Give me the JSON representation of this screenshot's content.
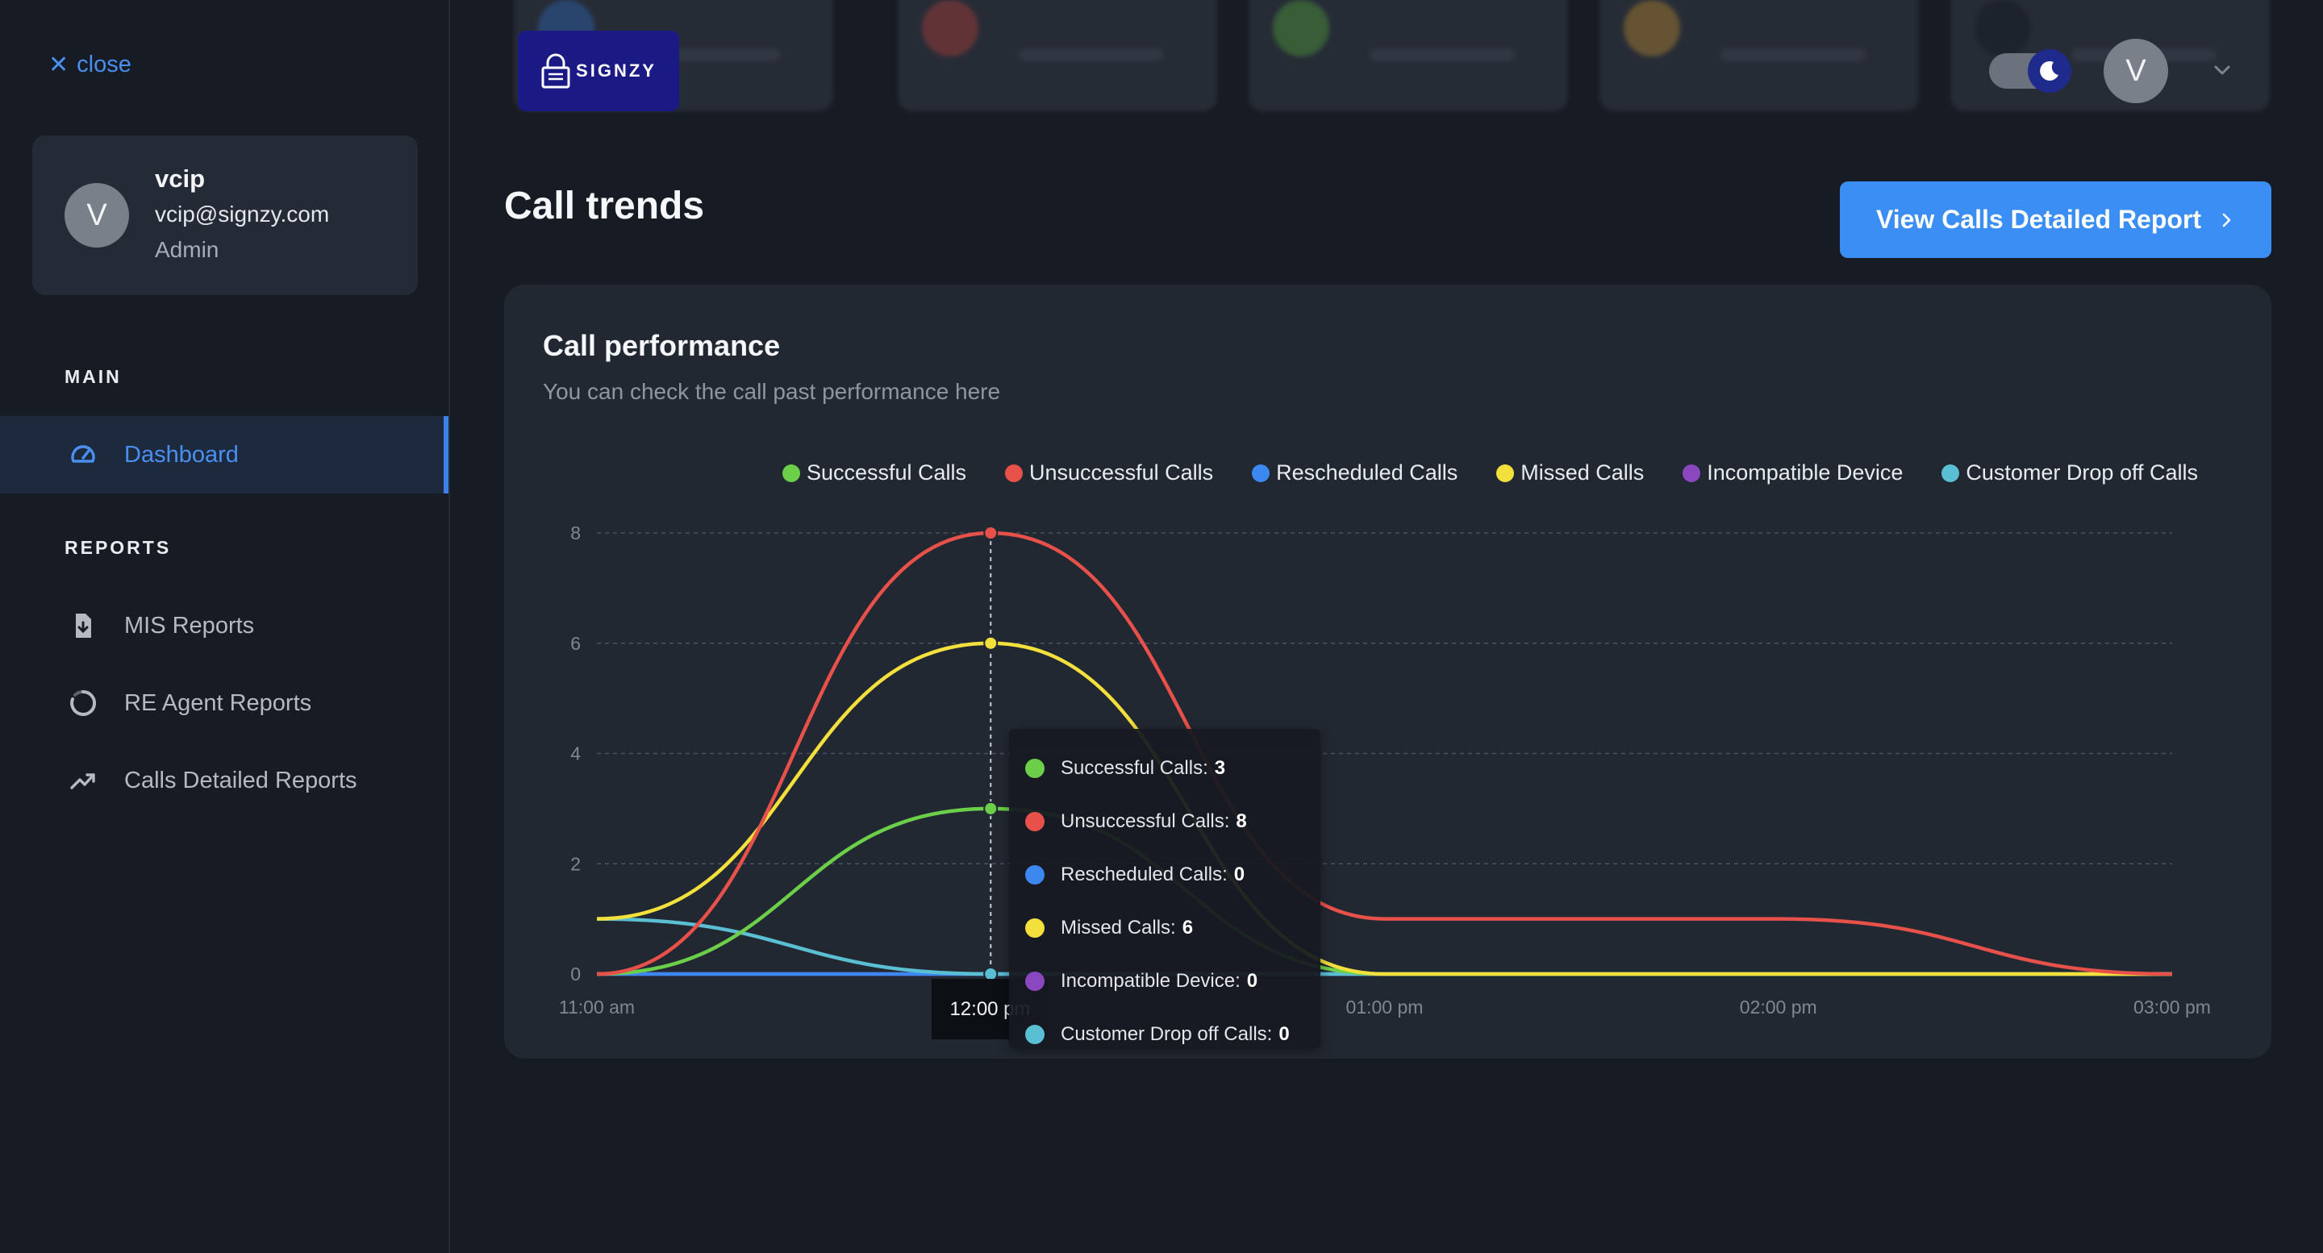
{
  "sidebar": {
    "close_label": "close",
    "profile": {
      "initial": "V",
      "name": "vcip",
      "email": "vcip@signzy.com",
      "role": "Admin"
    },
    "main_section": "MAIN",
    "main_items": [
      {
        "label": "Dashboard",
        "icon": "gauge-icon",
        "active": true
      }
    ],
    "reports_section": "REPORTS",
    "report_items": [
      {
        "label": "MIS Reports",
        "icon": "file-download-icon"
      },
      {
        "label": "RE Agent Reports",
        "icon": "circular-progress-icon"
      },
      {
        "label": "Calls Detailed Reports",
        "icon": "trending-up-icon"
      }
    ]
  },
  "header": {
    "logo_text": "SIGNZY",
    "user_initial": "V",
    "theme": "dark"
  },
  "main": {
    "title": "Call trends",
    "report_button": "View Calls Detailed Report",
    "card": {
      "title": "Call performance",
      "subtitle": "You can check the call past performance here"
    }
  },
  "tooltip": {
    "x_label": "12:00 pm",
    "rows": [
      {
        "label": "Successful Calls:",
        "value": "3"
      },
      {
        "label": "Unsuccessful Calls:",
        "value": "8"
      },
      {
        "label": "Rescheduled Calls:",
        "value": "0"
      },
      {
        "label": "Missed Calls:",
        "value": "6"
      },
      {
        "label": "Incompatible Device:",
        "value": "0"
      },
      {
        "label": "Customer Drop off Calls:",
        "value": "0"
      }
    ]
  },
  "chart_data": {
    "type": "line",
    "title": "",
    "xlabel": "",
    "ylabel": "",
    "x": [
      "11:00 am",
      "12:00 pm",
      "01:00 pm",
      "02:00 pm",
      "03:00 pm"
    ],
    "ylim": [
      0,
      8
    ],
    "yticks": [
      "0",
      "2",
      "4",
      "6",
      "8"
    ],
    "grid": true,
    "legend_position": "top-right",
    "series": [
      {
        "name": "Successful Calls",
        "color": "#6ccf4a",
        "values": [
          0,
          3,
          0,
          0,
          0
        ]
      },
      {
        "name": "Unsuccessful Calls",
        "color": "#e8514a",
        "values": [
          0,
          8,
          1,
          1,
          0
        ]
      },
      {
        "name": "Rescheduled Calls",
        "color": "#3d87f0",
        "values": [
          0,
          0,
          0,
          0,
          0
        ]
      },
      {
        "name": "Missed Calls",
        "color": "#f3e03c",
        "values": [
          1,
          6,
          0,
          0,
          0
        ]
      },
      {
        "name": "Incompatible Device",
        "color": "#8a47c0",
        "values": [
          0,
          0,
          0,
          0,
          0
        ]
      },
      {
        "name": "Customer Drop off Calls",
        "color": "#5bbfd3",
        "values": [
          1,
          0,
          0,
          0,
          0
        ]
      }
    ],
    "highlight_index": 1
  }
}
